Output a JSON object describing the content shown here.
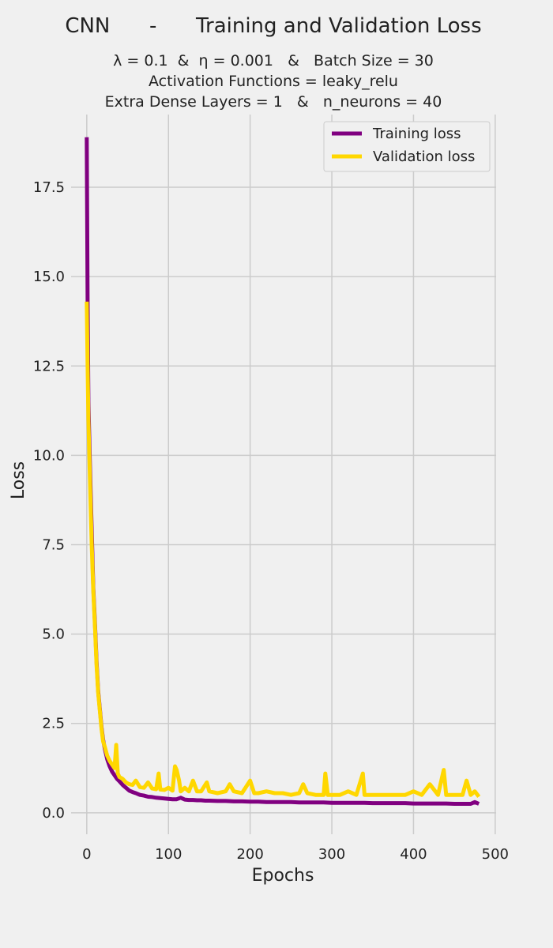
{
  "title": "CNN      -      Training and Validation Loss",
  "subtitle_lines": [
    "λ = 0.1  &  η = 0.001   &   Batch Size = 30",
    "Activation Functions = leaky_relu",
    "Extra Dense Layers = 1   &   n_neurons = 40"
  ],
  "colors": {
    "training": "#800080",
    "validation": "#FFD700",
    "background": "#f0f0f0",
    "grid": "#cbcbcb"
  },
  "chart_data": {
    "type": "line",
    "title": "CNN      -      Training and Validation Loss",
    "xlabel": "Epochs",
    "ylabel": "Loss",
    "xlim": [
      -25,
      505
    ],
    "ylim": [
      -0.6,
      19.6
    ],
    "xticks": [
      0,
      100,
      200,
      300,
      400,
      500
    ],
    "yticks": [
      0.0,
      2.5,
      5.0,
      7.5,
      10.0,
      12.5,
      15.0,
      17.5
    ],
    "ytick_labels": [
      "0.0",
      "2.5",
      "5.0",
      "7.5",
      "10.0",
      "12.5",
      "15.0",
      "17.5"
    ],
    "grid": true,
    "legend_position": "top-right",
    "series": [
      {
        "name": "Training loss",
        "color": "#800080",
        "x": [
          0,
          1,
          2,
          4,
          6,
          8,
          10,
          12,
          14,
          16,
          18,
          20,
          22,
          25,
          28,
          31,
          34,
          37,
          40,
          44,
          48,
          52,
          56,
          60,
          65,
          70,
          75,
          80,
          85,
          90,
          95,
          100,
          105,
          110,
          115,
          120,
          125,
          130,
          135,
          140,
          145,
          150,
          160,
          170,
          180,
          190,
          200,
          210,
          220,
          230,
          240,
          250,
          260,
          270,
          280,
          290,
          300,
          310,
          320,
          330,
          340,
          350,
          360,
          370,
          380,
          390,
          400,
          410,
          420,
          430,
          440,
          450,
          460,
          470,
          475,
          480
        ],
        "values": [
          18.9,
          14.3,
          11.5,
          9.6,
          7.9,
          6.3,
          5.3,
          4.2,
          3.4,
          2.9,
          2.4,
          2.05,
          1.8,
          1.5,
          1.3,
          1.15,
          1.05,
          0.95,
          0.88,
          0.78,
          0.7,
          0.62,
          0.58,
          0.55,
          0.5,
          0.48,
          0.45,
          0.44,
          0.42,
          0.41,
          0.4,
          0.39,
          0.38,
          0.38,
          0.42,
          0.37,
          0.36,
          0.36,
          0.35,
          0.35,
          0.34,
          0.34,
          0.33,
          0.33,
          0.32,
          0.32,
          0.31,
          0.31,
          0.3,
          0.3,
          0.3,
          0.3,
          0.29,
          0.29,
          0.29,
          0.29,
          0.28,
          0.28,
          0.28,
          0.28,
          0.28,
          0.27,
          0.27,
          0.27,
          0.27,
          0.27,
          0.26,
          0.26,
          0.26,
          0.26,
          0.26,
          0.25,
          0.25,
          0.25,
          0.3,
          0.25
        ]
      },
      {
        "name": "Validation loss",
        "color": "#FFD700",
        "x": [
          0,
          1,
          2,
          4,
          6,
          8,
          10,
          12,
          14,
          16,
          18,
          20,
          22,
          25,
          28,
          31,
          34,
          36,
          38,
          40,
          44,
          48,
          52,
          56,
          60,
          65,
          70,
          75,
          80,
          85,
          88,
          90,
          95,
          100,
          105,
          108,
          110,
          113,
          115,
          120,
          125,
          130,
          135,
          140,
          147,
          150,
          160,
          170,
          175,
          180,
          190,
          200,
          205,
          210,
          220,
          230,
          240,
          250,
          260,
          265,
          270,
          280,
          290,
          292,
          295,
          300,
          310,
          320,
          330,
          338,
          340,
          350,
          360,
          370,
          380,
          390,
          400,
          410,
          420,
          430,
          437,
          440,
          450,
          460,
          465,
          470,
          475,
          480
        ],
        "values": [
          14.3,
          12.5,
          11.0,
          9.2,
          7.5,
          6.2,
          5.2,
          4.1,
          3.35,
          2.85,
          2.35,
          2.0,
          1.85,
          1.6,
          1.45,
          1.35,
          1.25,
          1.9,
          1.1,
          1.0,
          0.95,
          0.85,
          0.8,
          0.78,
          0.9,
          0.72,
          0.7,
          0.85,
          0.68,
          0.66,
          1.1,
          0.65,
          0.64,
          0.7,
          0.62,
          1.3,
          1.2,
          0.9,
          0.6,
          0.7,
          0.6,
          0.9,
          0.6,
          0.6,
          0.85,
          0.6,
          0.55,
          0.6,
          0.8,
          0.6,
          0.55,
          0.9,
          0.55,
          0.55,
          0.6,
          0.55,
          0.55,
          0.5,
          0.55,
          0.8,
          0.55,
          0.5,
          0.5,
          1.1,
          0.5,
          0.5,
          0.5,
          0.6,
          0.5,
          1.1,
          0.5,
          0.5,
          0.5,
          0.5,
          0.5,
          0.5,
          0.6,
          0.5,
          0.8,
          0.5,
          1.2,
          0.5,
          0.5,
          0.5,
          0.9,
          0.5,
          0.6,
          0.45
        ]
      }
    ]
  }
}
